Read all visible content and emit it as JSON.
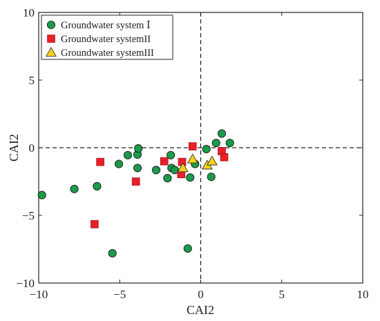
{
  "chart_data": {
    "type": "scatter",
    "xlabel": "CAI2",
    "ylabel": "CAI2",
    "xlim": [
      -10,
      10
    ],
    "ylim": [
      -10,
      10
    ],
    "xticks": [
      -10,
      -5,
      0,
      5,
      10
    ],
    "yticks": [
      -10,
      -5,
      0,
      5,
      10
    ],
    "reference_lines": {
      "x": 0,
      "y": 0,
      "style": "dashed"
    },
    "grid": false,
    "legend_position": "top-left",
    "series": [
      {
        "name": "Groundwater system Ⅰ",
        "marker": "circle",
        "color": "#1a9c4a",
        "points": [
          {
            "x": -9.8,
            "y": -3.5
          },
          {
            "x": -7.8,
            "y": -3.05
          },
          {
            "x": -6.4,
            "y": -2.85
          },
          {
            "x": -5.45,
            "y": -7.8
          },
          {
            "x": -5.05,
            "y": -1.2
          },
          {
            "x": -4.5,
            "y": -0.55
          },
          {
            "x": -3.9,
            "y": -1.5
          },
          {
            "x": -3.9,
            "y": -0.5
          },
          {
            "x": -3.85,
            "y": -0.05
          },
          {
            "x": -2.75,
            "y": -1.65
          },
          {
            "x": -2.05,
            "y": -2.25
          },
          {
            "x": -1.85,
            "y": -0.55
          },
          {
            "x": -1.8,
            "y": -1.5
          },
          {
            "x": -1.6,
            "y": -1.65
          },
          {
            "x": -0.8,
            "y": -7.45
          },
          {
            "x": -0.65,
            "y": -2.2
          },
          {
            "x": -0.35,
            "y": -1.2
          },
          {
            "x": 0.35,
            "y": -0.1
          },
          {
            "x": 0.65,
            "y": -2.15
          },
          {
            "x": 0.95,
            "y": 0.35
          },
          {
            "x": 1.3,
            "y": 1.05
          },
          {
            "x": 1.8,
            "y": 0.35
          }
        ]
      },
      {
        "name": "Groundwater systemII",
        "marker": "square",
        "color": "#e8202a",
        "points": [
          {
            "x": -6.55,
            "y": -5.65
          },
          {
            "x": -6.2,
            "y": -1.05
          },
          {
            "x": -4.0,
            "y": -2.5
          },
          {
            "x": -2.25,
            "y": -1.0
          },
          {
            "x": -1.15,
            "y": -1.05
          },
          {
            "x": -1.2,
            "y": -1.95
          },
          {
            "x": -0.5,
            "y": 0.1
          },
          {
            "x": 1.3,
            "y": -0.25
          },
          {
            "x": 1.45,
            "y": -0.7
          }
        ]
      },
      {
        "name": "Groundwater systemIII",
        "marker": "triangle",
        "color": "#f2d21b",
        "points": [
          {
            "x": -1.1,
            "y": -1.5
          },
          {
            "x": -0.5,
            "y": -0.85
          },
          {
            "x": 0.4,
            "y": -1.3
          },
          {
            "x": 0.7,
            "y": -1.0
          }
        ]
      }
    ]
  }
}
